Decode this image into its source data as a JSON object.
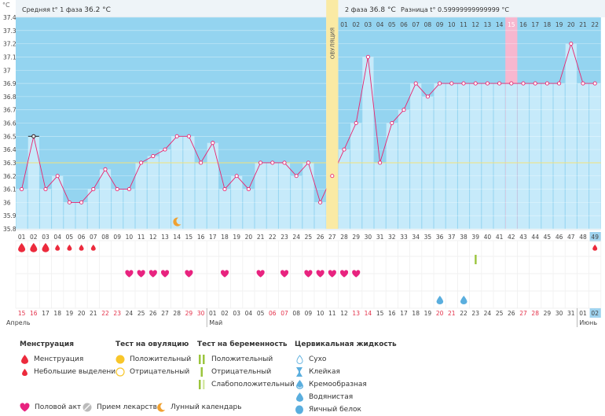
{
  "header": {
    "phase1": "Средняя t° 1 фаза",
    "phase1_avg": "36.2 °C",
    "phase2": "2 фаза",
    "phase2_avg": "36.8 °C",
    "diff_label": "Разница t°",
    "diff_value": "0.59999999999999 °C"
  },
  "unit": "°C",
  "ovulation_label": "ОВУЛЯЦИЯ",
  "colors": {
    "accent": "#e8236e",
    "phase1": "#c6eafa",
    "phase2": "#94d4f0",
    "ovulation": "#faeaa4",
    "highlight": "#f7b7cf",
    "menstruation": "#ec2a3c"
  },
  "chart_data": {
    "type": "line",
    "ylabel": "°C",
    "ylim": [
      35.8,
      37.4
    ],
    "y_ticks": [
      "35.8",
      "35.9",
      "36",
      "36.1",
      "36.2",
      "36.3",
      "36.4",
      "36.5",
      "36.6",
      "36.7",
      "36.8",
      "36.9",
      "37",
      "37.1",
      "37.2",
      "37.3",
      "37.4"
    ],
    "cycle_days": [
      "01",
      "02",
      "03",
      "04",
      "05",
      "06",
      "07",
      "08",
      "09",
      "10",
      "11",
      "12",
      "13",
      "14",
      "15",
      "16",
      "17",
      "18",
      "19",
      "20",
      "21",
      "22",
      "23",
      "24",
      "25",
      "26",
      "27",
      "28",
      "29",
      "30",
      "31",
      "32",
      "33",
      "34",
      "35",
      "36",
      "37",
      "38",
      "39",
      "40",
      "41",
      "42",
      "43",
      "44",
      "45",
      "46",
      "47",
      "48",
      "49"
    ],
    "post_ovulation_days": [
      "01",
      "02",
      "03",
      "04",
      "05",
      "06",
      "07",
      "08",
      "09",
      "10",
      "11",
      "12",
      "13",
      "14",
      "15",
      "16",
      "17",
      "18",
      "19",
      "20",
      "21",
      "22"
    ],
    "temperatures": [
      36.1,
      36.5,
      36.1,
      36.2,
      36.0,
      36.0,
      36.1,
      36.25,
      36.1,
      36.1,
      36.3,
      36.35,
      36.4,
      36.5,
      36.5,
      36.3,
      36.45,
      36.1,
      36.2,
      36.1,
      36.3,
      36.3,
      36.3,
      36.2,
      36.3,
      36.0,
      36.2,
      36.4,
      36.6,
      37.1,
      36.3,
      36.6,
      36.7,
      36.9,
      36.8,
      36.9,
      36.9,
      36.9,
      36.9,
      36.9,
      36.9,
      36.9,
      36.9,
      36.9,
      36.9,
      36.9,
      37.2,
      36.9,
      36.9
    ],
    "coverline": 36.3,
    "ovulation_day": 27,
    "highlight_day": 42,
    "marked_day": 2,
    "today_day": 49,
    "moon_day": 14,
    "menstruation_heavy_days": [
      1,
      2,
      3
    ],
    "menstruation_light_days": [
      4,
      5,
      6,
      7,
      49
    ],
    "intercourse_days": [
      10,
      11,
      12,
      13,
      15,
      18,
      21,
      23,
      25,
      26,
      27,
      28,
      29
    ],
    "pregnancy_positive_days": [
      39
    ],
    "cervical_watery_days": [
      36,
      38
    ],
    "dates": [
      "15",
      "16",
      "17",
      "18",
      "19",
      "20",
      "21",
      "22",
      "23",
      "24",
      "25",
      "26",
      "27",
      "28",
      "29",
      "30",
      "01",
      "02",
      "03",
      "04",
      "05",
      "06",
      "07",
      "08",
      "09",
      "10",
      "11",
      "12",
      "13",
      "14",
      "15",
      "16",
      "17",
      "18",
      "19",
      "20",
      "21",
      "22",
      "23",
      "24",
      "25",
      "26",
      "27",
      "28",
      "29",
      "30",
      "31",
      "01",
      "02"
    ],
    "red_dates": [
      1,
      2,
      8,
      9,
      15,
      16,
      22,
      23,
      29,
      30,
      36,
      37,
      43,
      44
    ],
    "months": [
      {
        "name": "Апрель",
        "day": 1
      },
      {
        "name": "Май",
        "day": 17
      },
      {
        "name": "Июнь",
        "day": 48
      }
    ]
  },
  "legend": {
    "menstruation": {
      "title": "Менструация",
      "items": [
        "Менструация",
        "Небольшие выделения"
      ]
    },
    "ovulation_test": {
      "title": "Тест на овуляцию",
      "items": [
        "Положительный",
        "Отрицательный"
      ]
    },
    "pregnancy_test": {
      "title": "Тест на беременность",
      "items": [
        "Положительный",
        "Отрицательный",
        "Слабоположительный"
      ]
    },
    "cervical": {
      "title": "Цервикальная жидкость",
      "items": [
        "Сухо",
        "Клейкая",
        "Кремообразная",
        "Водянистая",
        "Яичный белок"
      ]
    },
    "bottom": [
      "Половой акт",
      "Прием лекарств",
      "Лунный календарь"
    ]
  }
}
